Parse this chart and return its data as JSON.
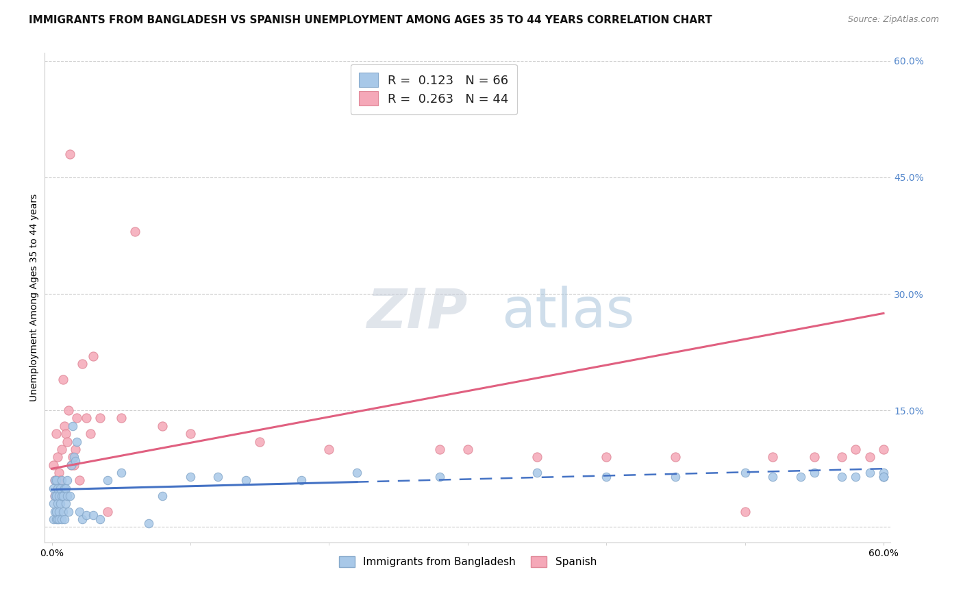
{
  "title": "IMMIGRANTS FROM BANGLADESH VS SPANISH UNEMPLOYMENT AMONG AGES 35 TO 44 YEARS CORRELATION CHART",
  "source": "Source: ZipAtlas.com",
  "ylabel": "Unemployment Among Ages 35 to 44 years",
  "legend1_label": "R =  0.123   N = 66",
  "legend2_label": "R =  0.263   N = 44",
  "legend_bottom": [
    "Immigrants from Bangladesh",
    "Spanish"
  ],
  "bangladesh_color": "#a8c8e8",
  "spanish_color": "#f5a8b8",
  "bangladesh_edge": "#88aacc",
  "spanish_edge": "#e08898",
  "trend_bangladesh_color": "#4472c4",
  "trend_spanish_color": "#e06080",
  "background_color": "#ffffff",
  "grid_color": "#cccccc",
  "right_tick_color": "#5588cc",
  "xlim": [
    0.0,
    0.6
  ],
  "ylim": [
    0.0,
    0.6
  ],
  "yticks": [
    0.15,
    0.3,
    0.45,
    0.6
  ],
  "ytick_labels": [
    "15.0%",
    "30.0%",
    "45.0%",
    "60.0%"
  ],
  "xtick_labels": [
    "0.0%",
    "60.0%"
  ],
  "trend_bang_x0": 0.0,
  "trend_bang_y0": 0.048,
  "trend_bang_x1": 0.6,
  "trend_bang_y1": 0.075,
  "trend_bang_solid_end": 0.22,
  "trend_span_x0": 0.0,
  "trend_span_y0": 0.075,
  "trend_span_x1": 0.6,
  "trend_span_y1": 0.275,
  "title_fontsize": 11,
  "axis_label_fontsize": 10,
  "tick_fontsize": 10,
  "scatter_size": 80,
  "bangladesh_scatter_x": [
    0.001,
    0.001,
    0.001,
    0.002,
    0.002,
    0.002,
    0.003,
    0.003,
    0.003,
    0.003,
    0.004,
    0.004,
    0.004,
    0.005,
    0.005,
    0.005,
    0.006,
    0.006,
    0.007,
    0.007,
    0.007,
    0.008,
    0.008,
    0.009,
    0.009,
    0.01,
    0.01,
    0.011,
    0.011,
    0.012,
    0.013,
    0.014,
    0.015,
    0.016,
    0.017,
    0.018,
    0.02,
    0.022,
    0.025,
    0.03,
    0.035,
    0.04,
    0.05,
    0.07,
    0.08,
    0.1,
    0.12,
    0.14,
    0.18,
    0.22,
    0.28,
    0.35,
    0.4,
    0.45,
    0.5,
    0.52,
    0.54,
    0.55,
    0.57,
    0.58,
    0.59,
    0.6,
    0.6,
    0.6,
    0.6,
    0.6
  ],
  "bangladesh_scatter_y": [
    0.03,
    0.05,
    0.01,
    0.02,
    0.06,
    0.04,
    0.01,
    0.04,
    0.02,
    0.06,
    0.01,
    0.03,
    0.05,
    0.02,
    0.04,
    0.01,
    0.03,
    0.05,
    0.01,
    0.04,
    0.06,
    0.02,
    0.04,
    0.01,
    0.05,
    0.03,
    0.05,
    0.04,
    0.06,
    0.02,
    0.04,
    0.08,
    0.13,
    0.09,
    0.085,
    0.11,
    0.02,
    0.01,
    0.015,
    0.015,
    0.01,
    0.06,
    0.07,
    0.005,
    0.04,
    0.065,
    0.065,
    0.06,
    0.06,
    0.07,
    0.065,
    0.07,
    0.065,
    0.065,
    0.07,
    0.065,
    0.065,
    0.07,
    0.065,
    0.065,
    0.07,
    0.065,
    0.065,
    0.07,
    0.065,
    0.065
  ],
  "spanish_scatter_x": [
    0.001,
    0.002,
    0.002,
    0.003,
    0.004,
    0.005,
    0.006,
    0.007,
    0.008,
    0.009,
    0.01,
    0.011,
    0.012,
    0.013,
    0.014,
    0.015,
    0.016,
    0.017,
    0.018,
    0.02,
    0.022,
    0.025,
    0.028,
    0.03,
    0.035,
    0.04,
    0.05,
    0.06,
    0.08,
    0.1,
    0.15,
    0.2,
    0.28,
    0.3,
    0.35,
    0.4,
    0.45,
    0.5,
    0.52,
    0.55,
    0.57,
    0.58,
    0.59,
    0.6
  ],
  "spanish_scatter_y": [
    0.08,
    0.06,
    0.04,
    0.12,
    0.09,
    0.07,
    0.06,
    0.1,
    0.19,
    0.13,
    0.12,
    0.11,
    0.15,
    0.48,
    0.08,
    0.09,
    0.08,
    0.1,
    0.14,
    0.06,
    0.21,
    0.14,
    0.12,
    0.22,
    0.14,
    0.02,
    0.14,
    0.38,
    0.13,
    0.12,
    0.11,
    0.1,
    0.1,
    0.1,
    0.09,
    0.09,
    0.09,
    0.02,
    0.09,
    0.09,
    0.09,
    0.1,
    0.09,
    0.1
  ]
}
